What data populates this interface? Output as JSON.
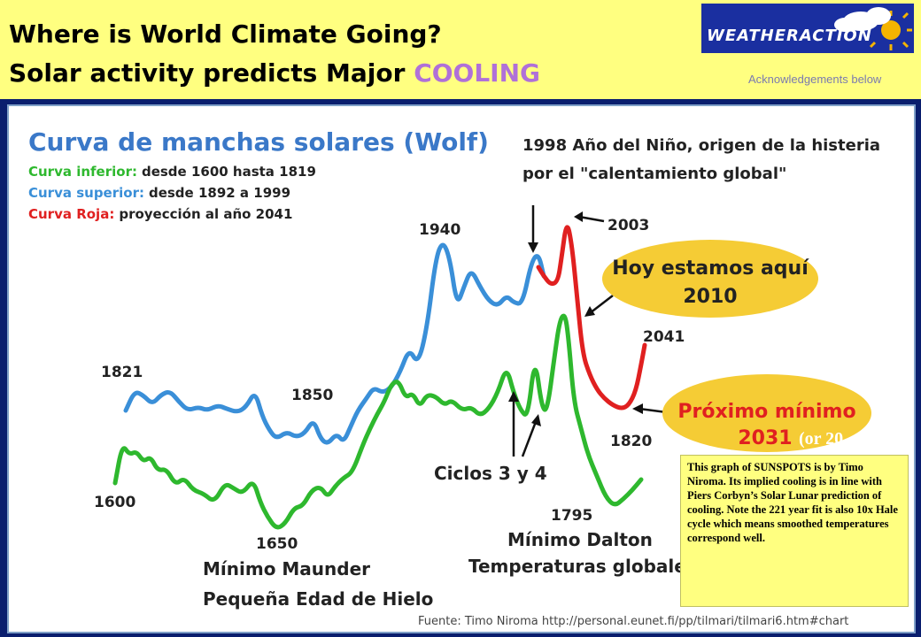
{
  "header": {
    "title_line1": "Where is World Climate Going?",
    "title_line2_prefix": "Solar activity predicts Major ",
    "title_line2_accent": "COOLING",
    "logo_text": "WEATHERACTION",
    "acknowledgement": "Acknowledgements below",
    "accent_color": "#b070d8"
  },
  "chart_data": {
    "type": "line",
    "title": "Curva de manchas solares (Wolf)",
    "legend": [
      {
        "label": "Curva inferior:",
        "text": "desde 1600 hasta 1819",
        "color": "#2eb82e"
      },
      {
        "label": "Curva superior:",
        "text": "desde 1892 a 1999",
        "color": "#3a8fd8"
      },
      {
        "label": "Curva Roja:",
        "text": "proyección al año 2041",
        "color": "#e02020"
      }
    ],
    "headline_text_line1": "1998 Año del Niño, origen de la histeria",
    "headline_text_line2": "por el \"calentamiento global\"",
    "bubble_now_line1": "Hoy estamos aquí",
    "bubble_now_line2": "2010",
    "bubble_min_line1": "Próximo mínimo",
    "bubble_min_line2": "2031",
    "bubble_min_overlay": "(or 20",
    "annotations": {
      "y1940": "1940",
      "y2003": "2003",
      "y2041": "2041",
      "y1821": "1821",
      "y1850": "1850",
      "y1820": "1820",
      "y1600": "1600",
      "y1650": "1650",
      "y1795": "1795",
      "ciclos": "Ciclos 3 y 4",
      "maunder": "Mínimo Maunder",
      "hielo": "Pequeña Edad de Hielo",
      "dalton": "Mínimo Dalton",
      "temps": "Temperaturas globales"
    },
    "source": "Fuente: Timo Niroma http://personal.eunet.fi/pp/tilmari/tilmari6.htm#chart",
    "series": [
      {
        "name": "Curva superior",
        "color": "#3a8fd8",
        "points": [
          [
            140,
            462
          ],
          [
            150,
            440
          ],
          [
            160,
            445
          ],
          [
            170,
            455
          ],
          [
            180,
            444
          ],
          [
            190,
            440
          ],
          [
            200,
            452
          ],
          [
            210,
            462
          ],
          [
            222,
            458
          ],
          [
            232,
            462
          ],
          [
            244,
            456
          ],
          [
            254,
            460
          ],
          [
            266,
            464
          ],
          [
            276,
            458
          ],
          [
            286,
            440
          ],
          [
            294,
            468
          ],
          [
            302,
            484
          ],
          [
            310,
            494
          ],
          [
            322,
            486
          ],
          [
            332,
            492
          ],
          [
            342,
            488
          ],
          [
            352,
            472
          ],
          [
            360,
            494
          ],
          [
            368,
            500
          ],
          [
            378,
            488
          ],
          [
            386,
            498
          ],
          [
            394,
            480
          ],
          [
            402,
            462
          ],
          [
            412,
            448
          ],
          [
            420,
            436
          ],
          [
            430,
            442
          ],
          [
            440,
            436
          ],
          [
            450,
            418
          ],
          [
            460,
            392
          ],
          [
            470,
            410
          ],
          [
            480,
            370
          ],
          [
            490,
            290
          ],
          [
            498,
            270
          ],
          [
            506,
            290
          ],
          [
            514,
            344
          ],
          [
            522,
            322
          ],
          [
            530,
            302
          ],
          [
            540,
            322
          ],
          [
            550,
            338
          ],
          [
            560,
            344
          ],
          [
            570,
            332
          ],
          [
            578,
            340
          ],
          [
            588,
            342
          ],
          [
            598,
            294
          ],
          [
            606,
            284
          ],
          [
            612,
            310
          ]
        ]
      },
      {
        "name": "Curva Roja",
        "color": "#e02020",
        "points": [
          [
            606,
            300
          ],
          [
            612,
            310
          ],
          [
            620,
            320
          ],
          [
            628,
            316
          ],
          [
            632,
            290
          ],
          [
            638,
            246
          ],
          [
            644,
            276
          ],
          [
            650,
            338
          ],
          [
            656,
            398
          ],
          [
            664,
            422
          ],
          [
            672,
            438
          ],
          [
            680,
            448
          ],
          [
            690,
            456
          ],
          [
            700,
            460
          ],
          [
            708,
            456
          ],
          [
            716,
            440
          ],
          [
            722,
            410
          ],
          [
            726,
            388
          ]
        ]
      },
      {
        "name": "Curva inferior",
        "color": "#2eb82e",
        "points": [
          [
            128,
            544
          ],
          [
            136,
            500
          ],
          [
            144,
            512
          ],
          [
            152,
            508
          ],
          [
            160,
            520
          ],
          [
            168,
            514
          ],
          [
            176,
            530
          ],
          [
            186,
            528
          ],
          [
            196,
            546
          ],
          [
            206,
            538
          ],
          [
            216,
            552
          ],
          [
            228,
            556
          ],
          [
            240,
            566
          ],
          [
            252,
            544
          ],
          [
            262,
            550
          ],
          [
            272,
            556
          ],
          [
            284,
            540
          ],
          [
            292,
            566
          ],
          [
            300,
            582
          ],
          [
            310,
            596
          ],
          [
            320,
            590
          ],
          [
            330,
            572
          ],
          [
            340,
            570
          ],
          [
            350,
            552
          ],
          [
            360,
            548
          ],
          [
            368,
            560
          ],
          [
            376,
            548
          ],
          [
            386,
            538
          ],
          [
            396,
            532
          ],
          [
            408,
            500
          ],
          [
            416,
            482
          ],
          [
            424,
            466
          ],
          [
            432,
            452
          ],
          [
            440,
            432
          ],
          [
            448,
            428
          ],
          [
            456,
            448
          ],
          [
            464,
            442
          ],
          [
            472,
            458
          ],
          [
            480,
            444
          ],
          [
            490,
            446
          ],
          [
            500,
            456
          ],
          [
            508,
            450
          ],
          [
            520,
            462
          ],
          [
            530,
            458
          ],
          [
            540,
            468
          ],
          [
            550,
            460
          ],
          [
            560,
            442
          ],
          [
            570,
            412
          ],
          [
            578,
            442
          ],
          [
            586,
            462
          ],
          [
            594,
            470
          ],
          [
            602,
            400
          ],
          [
            610,
            460
          ],
          [
            616,
            462
          ],
          [
            624,
            402
          ],
          [
            630,
            360
          ],
          [
            636,
            352
          ],
          [
            640,
            380
          ],
          [
            646,
            452
          ],
          [
            654,
            482
          ],
          [
            662,
            512
          ],
          [
            672,
            536
          ],
          [
            682,
            560
          ],
          [
            692,
            570
          ],
          [
            702,
            562
          ],
          [
            712,
            552
          ],
          [
            722,
            540
          ]
        ]
      }
    ]
  },
  "note": {
    "text": "This graph of SUNSPOTS is by Timo Niroma. Its implied cooling is in line with Piers Corbyn’s Solar Lunar prediction of cooling. Note the 221 year fit is also 10x Hale cycle which means smoothed temperatures correspond well."
  }
}
